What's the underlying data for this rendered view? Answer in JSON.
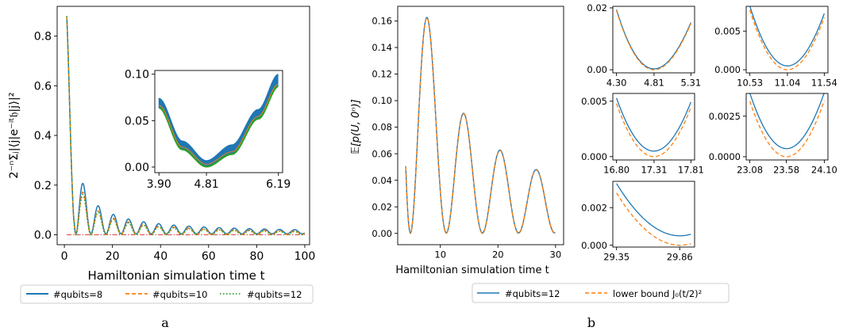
{
  "panel_a": {
    "label": "a",
    "ylabel": "2⁻ⁿΣⱼ|⟨j|e⁻ⁱᵗ𝔥|j⟩|²",
    "xlabel": "Hamiltonian simulation time t",
    "legend": [
      "#qubits=8",
      "#qubits=10",
      "#qubits=12"
    ]
  },
  "panel_b": {
    "label": "b",
    "ylabel": "𝔼[p(U, 0ⁿ)]",
    "xlabel": "Hamiltonian simulation time t",
    "legend": [
      "#qubits=12",
      "lower bound J₀(t/2)²"
    ]
  },
  "colors": {
    "blue": "#1f77b4",
    "orange": "#ff7f0e",
    "green": "#2ca02c"
  },
  "chart_data": [
    {
      "id": "a-main",
      "type": "line",
      "xlim": [
        -3,
        102
      ],
      "ylim": [
        -0.04,
        0.92
      ],
      "xticks": [
        0,
        20,
        40,
        60,
        80,
        100
      ],
      "xticklabels": [
        "0",
        "20",
        "40",
        "60",
        "80",
        "100"
      ],
      "yticks": [
        0,
        0.2,
        0.4,
        0.6,
        0.8
      ],
      "yticklabels": [
        "0.0",
        "0.2",
        "0.4",
        "0.6",
        "0.8"
      ],
      "series": [
        {
          "name": "#qubits=8",
          "color": "#1f77b4",
          "style": "solid",
          "model": "bessel",
          "spread": 1.25,
          "offset": 0.004
        },
        {
          "name": "#qubits=10",
          "color": "#ff7f0e",
          "style": "dashed",
          "model": "bessel",
          "spread": 1.05,
          "offset": 0.0015
        },
        {
          "name": "#qubits=12",
          "color": "#2ca02c",
          "style": "dotted",
          "model": "bessel",
          "spread": 1.0,
          "offset": 0.0
        }
      ],
      "t_range": [
        1,
        100
      ],
      "baseline": {
        "y": 0,
        "color": "#d62728",
        "style": "dashdot",
        "x_range": [
          1,
          100
        ]
      }
    },
    {
      "id": "a-inset",
      "type": "line",
      "xlim": [
        3.82,
        6.27
      ],
      "ylim": [
        -0.006,
        0.104
      ],
      "xticks": [
        3.9,
        4.81,
        6.19
      ],
      "xticklabels": [
        "3.90",
        "4.81",
        "6.19"
      ],
      "yticks": [
        0,
        0.05,
        0.1
      ],
      "yticklabels": [
        "0.00",
        "0.05",
        "0.10"
      ],
      "band": [
        [
          3.9,
          0.074,
          0.064
        ],
        [
          4.35,
          0.028,
          0.019
        ],
        [
          4.81,
          0.007,
          0.0005
        ],
        [
          5.3,
          0.024,
          0.014
        ],
        [
          5.8,
          0.062,
          0.052
        ],
        [
          6.19,
          0.1,
          0.087
        ]
      ]
    },
    {
      "id": "b-main",
      "type": "line",
      "xlim": [
        2.6,
        31.4
      ],
      "ylim": [
        -0.0085,
        0.171
      ],
      "xticks": [
        10,
        20,
        30
      ],
      "xticklabels": [
        "10",
        "20",
        "30"
      ],
      "yticks": [
        0,
        0.02,
        0.04,
        0.06,
        0.08,
        0.1,
        0.12,
        0.14,
        0.16
      ],
      "yticklabels": [
        "0.00",
        "0.02",
        "0.04",
        "0.06",
        "0.08",
        "0.10",
        "0.12",
        "0.14",
        "0.16"
      ],
      "t_range": [
        4,
        30
      ],
      "series": [
        {
          "name": "#qubits=12",
          "color": "#1f77b4",
          "style": "solid",
          "offset": 0.0004
        },
        {
          "name": "lower bound J₀(t/2)²",
          "color": "#ff7f0e",
          "style": "dashed",
          "offset": 0
        }
      ]
    },
    {
      "id": "b-s1",
      "type": "line",
      "xlim": [
        4.25,
        5.36
      ],
      "ylim": [
        -0.001,
        0.0205
      ],
      "t_range": [
        4.3,
        5.31
      ],
      "xticks": [
        4.3,
        4.81,
        5.31
      ],
      "xticklabels": [
        "4.30",
        "4.81",
        "5.31"
      ],
      "yticks": [
        0,
        0.02
      ],
      "yticklabels": [
        "0.00",
        "0.02"
      ],
      "offset": 0.0003
    },
    {
      "id": "b-s2",
      "type": "line",
      "xlim": [
        10.48,
        11.59
      ],
      "ylim": [
        -0.0004,
        0.0082
      ],
      "t_range": [
        10.53,
        11.54
      ],
      "xticks": [
        10.53,
        11.04,
        11.54
      ],
      "xticklabels": [
        "10.53",
        "11.04",
        "11.54"
      ],
      "yticks": [
        0,
        0.005
      ],
      "yticklabels": [
        "0.000",
        "0.005"
      ],
      "offset": 0.0005
    },
    {
      "id": "b-s3",
      "type": "line",
      "xlim": [
        16.75,
        17.86
      ],
      "ylim": [
        -0.0003,
        0.0057
      ],
      "t_range": [
        16.8,
        17.81
      ],
      "xticks": [
        16.8,
        17.31,
        17.81
      ],
      "xticklabels": [
        "16.80",
        "17.31",
        "17.81"
      ],
      "yticks": [
        0,
        0.005
      ],
      "yticklabels": [
        "0.000",
        "0.005"
      ],
      "offset": 0.0005
    },
    {
      "id": "b-s4",
      "type": "line",
      "xlim": [
        23.03,
        24.15
      ],
      "ylim": [
        -0.0002,
        0.0039
      ],
      "t_range": [
        23.08,
        24.1
      ],
      "xticks": [
        23.08,
        23.58,
        24.1
      ],
      "xticklabels": [
        "23.08",
        "23.58",
        "24.10"
      ],
      "yticks": [
        0,
        0.0025
      ],
      "yticklabels": [
        "0.0000",
        "0.0025"
      ],
      "offset": 0.0005
    },
    {
      "id": "b-s5",
      "type": "line",
      "xlim": [
        29.32,
        29.98
      ],
      "ylim": [
        -0.0001,
        0.0034
      ],
      "t_range": [
        29.35,
        29.95
      ],
      "xticks": [
        29.35,
        29.86
      ],
      "xticklabels": [
        "29.35",
        "29.86"
      ],
      "yticks": [
        0,
        0.002
      ],
      "yticklabels": [
        "0.000",
        "0.002"
      ],
      "offset": 0.0005
    }
  ]
}
